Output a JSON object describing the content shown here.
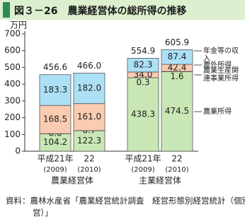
{
  "chart_data": {
    "type": "stacked-bar",
    "title": "図３－26　農業経営体の総所得の推移",
    "y_unit": "万円",
    "categories": [
      "平成21年",
      "22",
      "平成21年",
      "22"
    ],
    "category_years": [
      "(2009)",
      "(2010)",
      "(2009)",
      "(2010)"
    ],
    "groups": [
      "農業経営体",
      "主業経営体"
    ],
    "ylim": [
      0,
      700
    ],
    "yticks": [
      0,
      100,
      200,
      300,
      400,
      500,
      600,
      700
    ],
    "series": [
      {
        "name": "農業所得",
        "color": "#c9e7b4",
        "values": [
          104.2,
          122.3,
          438.3,
          474.5
        ],
        "value_labels": [
          "104.2",
          "122.3",
          "438.3",
          "474.5"
        ]
      },
      {
        "name": "農業生産関連事業所得",
        "color": "#f4f4f4",
        "values": [
          0.6,
          0.7,
          0.3,
          1.6
        ],
        "value_labels": [
          "0.6",
          "0.7",
          "0.3",
          "1.6"
        ]
      },
      {
        "name": "農外所得",
        "color": "#f9cbb0",
        "values": [
          168.5,
          161.0,
          34.0,
          42.4
        ],
        "value_labels": [
          "168.5",
          "161.0",
          "34.0",
          "42.4"
        ]
      },
      {
        "name": "年金等の収入",
        "color": "#ace0f6",
        "values": [
          183.3,
          182.0,
          82.3,
          87.4
        ],
        "value_labels": [
          "183.3",
          "182.0",
          "82.3",
          "87.4"
        ]
      }
    ],
    "totals": [
      456.6,
      466.0,
      554.9,
      605.9
    ],
    "total_labels": [
      "456.6",
      "466.0",
      "554.9",
      "605.9"
    ],
    "source": "資料：農林水産省「農業経営統計調査　経営形態別経営統計（個別経営）」"
  }
}
